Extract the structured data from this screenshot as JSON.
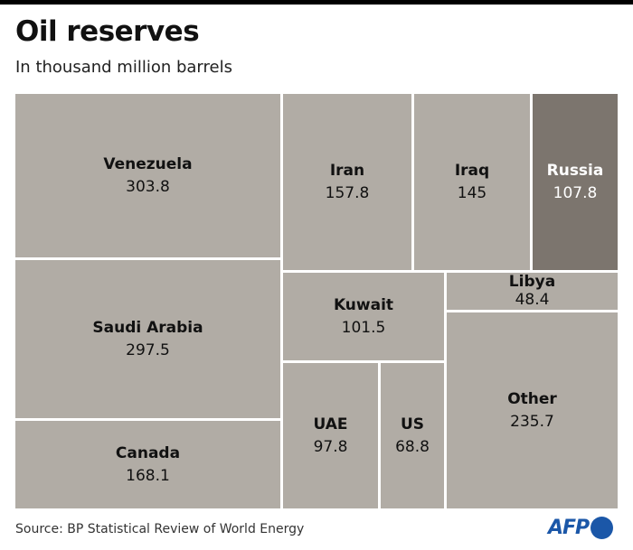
{
  "chart_data": {
    "type": "treemap",
    "title": "Oil reserves",
    "subtitle": "In thousand million barrels",
    "categories": [
      "Venezuela",
      "Saudi Arabia",
      "Canada",
      "Iran",
      "Iraq",
      "Russia",
      "Kuwait",
      "Libya",
      "Other",
      "UAE",
      "US"
    ],
    "values": [
      303.8,
      297.5,
      168.1,
      157.8,
      145,
      107.8,
      101.5,
      48.4,
      235.7,
      97.8,
      68.8
    ],
    "value_labels": [
      "303.8",
      "297.5",
      "168.1",
      "157.8",
      "145",
      "107.8",
      "101.5",
      "48.4",
      "235.7",
      "97.8",
      "68.8"
    ],
    "highlight": "Russia",
    "colors": {
      "default": "#b1aca5",
      "highlight": "#7c756e"
    }
  },
  "footer": {
    "source": "Source: BP Statistical Review of World Energy",
    "logo": "AFP"
  }
}
